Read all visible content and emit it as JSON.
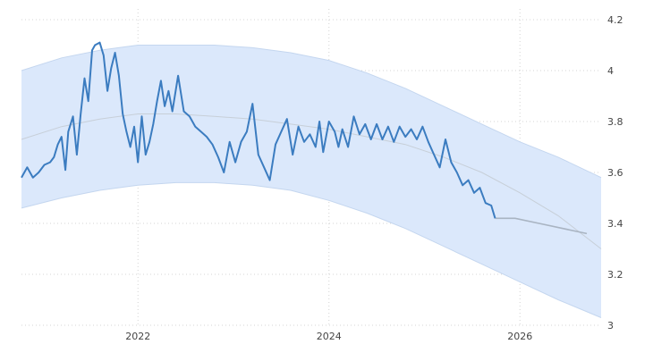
{
  "chart_data": {
    "type": "line",
    "title": "",
    "xlabel": "",
    "ylabel": "",
    "x_ticks": [
      "2022",
      "2024",
      "2026"
    ],
    "y_ticks": [
      "3",
      "3.2",
      "3.4",
      "3.6",
      "3.8",
      "4",
      "4.2"
    ],
    "xlim": [
      2020.78,
      2026.85
    ],
    "ylim": [
      3.0,
      4.2
    ],
    "grid": true,
    "y_axis_side": "right",
    "series": [
      {
        "role": "actual",
        "color": "#3b7cc0",
        "x": [
          2020.78,
          2020.84,
          2020.9,
          2020.96,
          2021.02,
          2021.08,
          2021.12,
          2021.16,
          2021.2,
          2021.24,
          2021.27,
          2021.32,
          2021.36,
          2021.4,
          2021.44,
          2021.48,
          2021.52,
          2021.55,
          2021.6,
          2021.64,
          2021.68,
          2021.72,
          2021.76,
          2021.8,
          2021.84,
          2021.88,
          2021.92,
          2021.96,
          2022.0,
          2022.04,
          2022.08,
          2022.12,
          2022.16,
          2022.2,
          2022.24,
          2022.28,
          2022.32,
          2022.36,
          2022.42,
          2022.48,
          2022.54,
          2022.6,
          2022.66,
          2022.72,
          2022.78,
          2022.84,
          2022.9,
          2022.96,
          2023.02,
          2023.08,
          2023.14,
          2023.2,
          2023.26,
          2023.32,
          2023.38,
          2023.44,
          2023.5,
          2023.56,
          2023.62,
          2023.68,
          2023.74,
          2023.8,
          2023.86,
          2023.9,
          2023.94,
          2024.0,
          2024.06,
          2024.1,
          2024.14,
          2024.2,
          2024.26,
          2024.32,
          2024.38,
          2024.44,
          2024.5,
          2024.56,
          2024.62,
          2024.68,
          2024.74,
          2024.8,
          2024.86,
          2024.92,
          2024.98,
          2025.04,
          2025.1,
          2025.16,
          2025.22,
          2025.28,
          2025.34,
          2025.4,
          2025.46,
          2025.52,
          2025.58,
          2025.64,
          2025.7,
          2025.74
        ],
        "y": [
          3.58,
          3.62,
          3.58,
          3.6,
          3.63,
          3.64,
          3.66,
          3.71,
          3.74,
          3.61,
          3.76,
          3.82,
          3.67,
          3.83,
          3.97,
          3.88,
          4.08,
          4.1,
          4.11,
          4.06,
          3.92,
          4.01,
          4.07,
          3.98,
          3.83,
          3.76,
          3.7,
          3.78,
          3.64,
          3.82,
          3.67,
          3.72,
          3.79,
          3.88,
          3.96,
          3.86,
          3.92,
          3.84,
          3.98,
          3.84,
          3.82,
          3.78,
          3.76,
          3.74,
          3.71,
          3.66,
          3.6,
          3.72,
          3.64,
          3.72,
          3.76,
          3.87,
          3.67,
          3.62,
          3.57,
          3.71,
          3.76,
          3.81,
          3.67,
          3.78,
          3.72,
          3.75,
          3.7,
          3.8,
          3.68,
          3.8,
          3.76,
          3.7,
          3.77,
          3.7,
          3.82,
          3.75,
          3.79,
          3.73,
          3.79,
          3.73,
          3.78,
          3.72,
          3.78,
          3.74,
          3.77,
          3.73,
          3.78,
          3.72,
          3.67,
          3.62,
          3.73,
          3.64,
          3.6,
          3.55,
          3.57,
          3.52,
          3.54,
          3.48,
          3.47,
          3.42
        ]
      },
      {
        "role": "forecast",
        "color": "#a9b4c2",
        "x": [
          2025.74,
          2025.95,
          2026.2,
          2026.45,
          2026.7
        ],
        "y": [
          3.42,
          3.42,
          3.4,
          3.38,
          3.36
        ]
      },
      {
        "role": "trend",
        "color": "#c7cfd8",
        "x": [
          2020.78,
          2021.2,
          2021.6,
          2022.0,
          2022.4,
          2022.8,
          2023.2,
          2023.6,
          2024.0,
          2024.4,
          2024.8,
          2025.2,
          2025.6,
          2026.0,
          2026.4,
          2026.85
        ],
        "y": [
          3.73,
          3.78,
          3.81,
          3.83,
          3.83,
          3.82,
          3.81,
          3.79,
          3.77,
          3.74,
          3.71,
          3.66,
          3.6,
          3.52,
          3.43,
          3.3
        ]
      },
      {
        "role": "band_upper",
        "color": "#dbe8fb",
        "x": [
          2020.78,
          2021.2,
          2021.6,
          2022.0,
          2022.4,
          2022.8,
          2023.2,
          2023.6,
          2024.0,
          2024.4,
          2024.8,
          2025.2,
          2025.6,
          2026.0,
          2026.4,
          2026.85
        ],
        "y": [
          4.0,
          4.05,
          4.08,
          4.1,
          4.1,
          4.1,
          4.09,
          4.07,
          4.04,
          3.99,
          3.93,
          3.86,
          3.79,
          3.72,
          3.66,
          3.58
        ]
      },
      {
        "role": "band_lower",
        "color": "#dbe8fb",
        "x": [
          2020.78,
          2021.2,
          2021.6,
          2022.0,
          2022.4,
          2022.8,
          2023.2,
          2023.6,
          2024.0,
          2024.4,
          2024.8,
          2025.2,
          2025.6,
          2026.0,
          2026.4,
          2026.85
        ],
        "y": [
          3.46,
          3.5,
          3.53,
          3.55,
          3.56,
          3.56,
          3.55,
          3.53,
          3.49,
          3.44,
          3.38,
          3.31,
          3.24,
          3.17,
          3.1,
          3.03
        ]
      }
    ]
  }
}
